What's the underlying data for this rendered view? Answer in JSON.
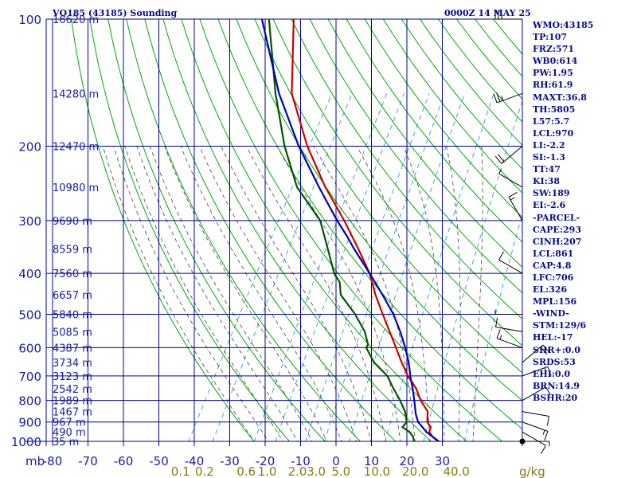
{
  "header": {
    "station": "VQ185 (43185) Sounding",
    "time": "0000Z 14 MAY 25"
  },
  "axes": {
    "pressure_unit": "mb",
    "mixing_unit": "g/kg"
  },
  "colors": {
    "temperature": "#cc0000",
    "dewpoint": "#005500",
    "parcel": "#0000bb",
    "grid": "#00008b",
    "dry_adiabat": "#00aa00",
    "moist_adiabat": "#444444",
    "mixing_ratio": "#3399cc",
    "wind": "#000000"
  },
  "indices": [
    "WMO:43185",
    "TP:107",
    "FRZ:571",
    "WB0:614",
    "PW:1.95",
    "RH:61.9",
    "MAXT:36.8",
    "TH:5805",
    "L57:5.7",
    "LCL:970",
    "LI:-2.2",
    "SI:-1.3",
    "TT:47",
    "KI:38",
    "SW:189",
    "EI:-2.6",
    "-PARCEL-",
    "CAPE:293",
    "CINH:207",
    "LCL:861",
    "CAP:4.8",
    "LFC:706",
    "EL:326",
    "MPL:156",
    "-WIND-",
    "STM:129/6",
    "HEL:-17",
    "SHR+:0.0",
    "SRDS:53",
    "EHI:0.0",
    "BRN:14.9",
    "BSHR:20"
  ],
  "chart_data": {
    "type": "line",
    "title": "VQ185 (43185) Sounding",
    "subtitle": "0000Z 14 MAY 25",
    "xlabel": "",
    "ylabel": "mb",
    "xlim": [
      -80,
      40
    ],
    "ylim": [
      1000,
      100
    ],
    "y_scale": "log",
    "grid": true,
    "x_ticks": [
      "-80",
      "-70",
      "-60",
      "-50",
      "-40",
      "-30",
      "-20",
      "-10",
      "0",
      "10",
      "20",
      "30"
    ],
    "y_ticks": [
      "100",
      "200",
      "300",
      "400",
      "500",
      "600",
      "700",
      "800",
      "900",
      "1000"
    ],
    "height_labels": [
      {
        "p": 100,
        "label": "16620 m"
      },
      {
        "p": 150,
        "label": "14280 m"
      },
      {
        "p": 200,
        "label": "12470 m"
      },
      {
        "p": 250,
        "label": "10980 m"
      },
      {
        "p": 300,
        "label": "9690 m"
      },
      {
        "p": 350,
        "label": "8559 m"
      },
      {
        "p": 400,
        "label": "7560 m"
      },
      {
        "p": 450,
        "label": "6657 m"
      },
      {
        "p": 500,
        "label": "5840 m"
      },
      {
        "p": 550,
        "label": "5085 m"
      },
      {
        "p": 600,
        "label": "4387 m"
      },
      {
        "p": 650,
        "label": "3734 m"
      },
      {
        "p": 700,
        "label": "3123 m"
      },
      {
        "p": 750,
        "label": "2542 m"
      },
      {
        "p": 800,
        "label": "1989 m"
      },
      {
        "p": 850,
        "label": "1467 m"
      },
      {
        "p": 900,
        "label": "967 m"
      },
      {
        "p": 950,
        "label": "490 m"
      },
      {
        "p": 1000,
        "label": "35 m"
      }
    ],
    "mixing_ratio_labels": [
      {
        "w": 0.1,
        "label": "0.1"
      },
      {
        "w": 0.2,
        "label": "0.2"
      },
      {
        "w": 0.6,
        "label": "0.6"
      },
      {
        "w": 1.0,
        "label": "1.0"
      },
      {
        "w": 2.0,
        "label": "2.0"
      },
      {
        "w": 3.0,
        "label": "3.0"
      },
      {
        "w": 5.0,
        "label": "5.0"
      },
      {
        "w": 10.0,
        "label": "10.0"
      },
      {
        "w": 20.0,
        "label": "20.0"
      },
      {
        "w": 40.0,
        "label": "40.0"
      }
    ],
    "series": [
      {
        "key": "temperature",
        "points": [
          {
            "p": 1009,
            "t": 30.6
          },
          {
            "p": 1000,
            "t": 28.8
          },
          {
            "p": 975,
            "t": 26.5
          },
          {
            "p": 950,
            "t": 24.8
          },
          {
            "p": 925,
            "t": 24.4
          },
          {
            "p": 900,
            "t": 22.6
          },
          {
            "p": 850,
            "t": 21.0
          },
          {
            "p": 800,
            "t": 17.2
          },
          {
            "p": 750,
            "t": 14.0
          },
          {
            "p": 700,
            "t": 9.6
          },
          {
            "p": 650,
            "t": 5.6
          },
          {
            "p": 600,
            "t": 1.6
          },
          {
            "p": 550,
            "t": -2.8
          },
          {
            "p": 500,
            "t": -7.6
          },
          {
            "p": 450,
            "t": -12.8
          },
          {
            "p": 400,
            "t": -18.0
          },
          {
            "p": 350,
            "t": -25.2
          },
          {
            "p": 300,
            "t": -33.8
          },
          {
            "p": 250,
            "t": -44.6
          },
          {
            "p": 200,
            "t": -56.4
          },
          {
            "p": 150,
            "t": -69.4
          },
          {
            "p": 100,
            "t": -81.0
          }
        ]
      },
      {
        "key": "dewpoint",
        "points": [
          {
            "p": 1009,
            "t": 24.2
          },
          {
            "p": 1000,
            "t": 22.0
          },
          {
            "p": 975,
            "t": 21.0
          },
          {
            "p": 950,
            "t": 19.2
          },
          {
            "p": 925,
            "t": 16.4
          },
          {
            "p": 900,
            "t": 16.8
          },
          {
            "p": 850,
            "t": 14.6
          },
          {
            "p": 800,
            "t": 11.4
          },
          {
            "p": 750,
            "t": 7.6
          },
          {
            "p": 700,
            "t": 3.8
          },
          {
            "p": 650,
            "t": -2.2
          },
          {
            "p": 600,
            "t": -6.8
          },
          {
            "p": 590,
            "t": -6.8
          },
          {
            "p": 550,
            "t": -9.8
          },
          {
            "p": 500,
            "t": -15.4
          },
          {
            "p": 450,
            "t": -22.6
          },
          {
            "p": 420,
            "t": -25.0
          },
          {
            "p": 400,
            "t": -28.0
          },
          {
            "p": 350,
            "t": -33.8
          },
          {
            "p": 300,
            "t": -40.6
          },
          {
            "p": 250,
            "t": -52.6
          },
          {
            "p": 200,
            "t": -62.8
          },
          {
            "p": 150,
            "t": -74.0
          },
          {
            "p": 100,
            "t": -88.0
          }
        ]
      },
      {
        "key": "parcel",
        "points": [
          {
            "p": 1009,
            "t": 30.6
          },
          {
            "p": 1000,
            "t": 29.0
          },
          {
            "p": 950,
            "t": 24.0
          },
          {
            "p": 900,
            "t": 20.0
          },
          {
            "p": 861,
            "t": 18.0
          },
          {
            "p": 800,
            "t": 15.4
          },
          {
            "p": 750,
            "t": 13.0
          },
          {
            "p": 706,
            "t": 10.6
          },
          {
            "p": 650,
            "t": 7.6
          },
          {
            "p": 600,
            "t": 4.2
          },
          {
            "p": 550,
            "t": 0.2
          },
          {
            "p": 500,
            "t": -4.6
          },
          {
            "p": 450,
            "t": -10.8
          },
          {
            "p": 400,
            "t": -18.0
          },
          {
            "p": 350,
            "t": -26.4
          },
          {
            "p": 326,
            "t": -30.6
          },
          {
            "p": 300,
            "t": -35.8
          },
          {
            "p": 250,
            "t": -46.4
          },
          {
            "p": 200,
            "t": -58.8
          },
          {
            "p": 150,
            "t": -73.0
          },
          {
            "p": 100,
            "t": -90.0
          }
        ]
      }
    ],
    "wind": [
      {
        "p": 1000,
        "dir": 90,
        "spd": 5
      },
      {
        "p": 950,
        "dir": 120,
        "spd": 10
      },
      {
        "p": 900,
        "dir": 110,
        "spd": 15
      },
      {
        "p": 850,
        "dir": 100,
        "spd": 10
      },
      {
        "p": 800,
        "dir": 60,
        "spd": 10
      },
      {
        "p": 700,
        "dir": 70,
        "spd": 15
      },
      {
        "p": 650,
        "dir": 50,
        "spd": 20
      },
      {
        "p": 600,
        "dir": 290,
        "spd": 15
      },
      {
        "p": 550,
        "dir": 280,
        "spd": 10
      },
      {
        "p": 500,
        "dir": 270,
        "spd": 5
      },
      {
        "p": 400,
        "dir": 300,
        "spd": 10
      },
      {
        "p": 300,
        "dir": 330,
        "spd": 15
      },
      {
        "p": 250,
        "dir": 300,
        "spd": 5
      },
      {
        "p": 200,
        "dir": 230,
        "spd": 20
      },
      {
        "p": 150,
        "dir": 250,
        "spd": 25
      },
      {
        "p": 100,
        "dir": 270,
        "spd": 25
      }
    ]
  }
}
